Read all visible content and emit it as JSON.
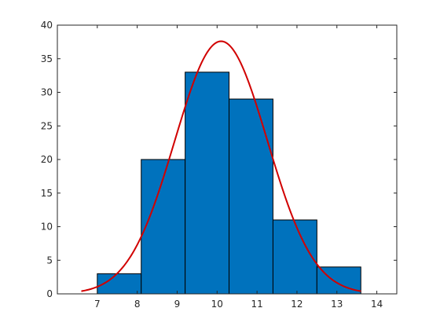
{
  "chart_data": {
    "type": "bar",
    "subtype": "histogram",
    "title": "",
    "xlabel": "",
    "ylabel": "",
    "xlim": [
      6,
      14.5
    ],
    "ylim": [
      0,
      40
    ],
    "xticks": [
      7,
      8,
      9,
      10,
      11,
      12,
      13,
      14
    ],
    "yticks": [
      0,
      5,
      10,
      15,
      20,
      25,
      30,
      35,
      40
    ],
    "grid": false,
    "bins": [
      {
        "x0": 7.0,
        "x1": 8.1,
        "count": 3
      },
      {
        "x0": 8.1,
        "x1": 9.2,
        "count": 20
      },
      {
        "x0": 9.2,
        "x1": 10.3,
        "count": 33
      },
      {
        "x0": 10.3,
        "x1": 11.4,
        "count": 29
      },
      {
        "x0": 11.4,
        "x1": 12.5,
        "count": 11
      },
      {
        "x0": 12.5,
        "x1": 13.6,
        "count": 4
      }
    ],
    "fit_curve": {
      "type": "normal",
      "mean": 10.1,
      "peak": 37.6,
      "sigma": 1.16,
      "x_range": [
        6.6,
        13.6
      ]
    },
    "colors": {
      "bar_fill": "#0072BD",
      "bar_edge": "#000000",
      "curve": "#D10000",
      "axis": "#262626"
    }
  }
}
